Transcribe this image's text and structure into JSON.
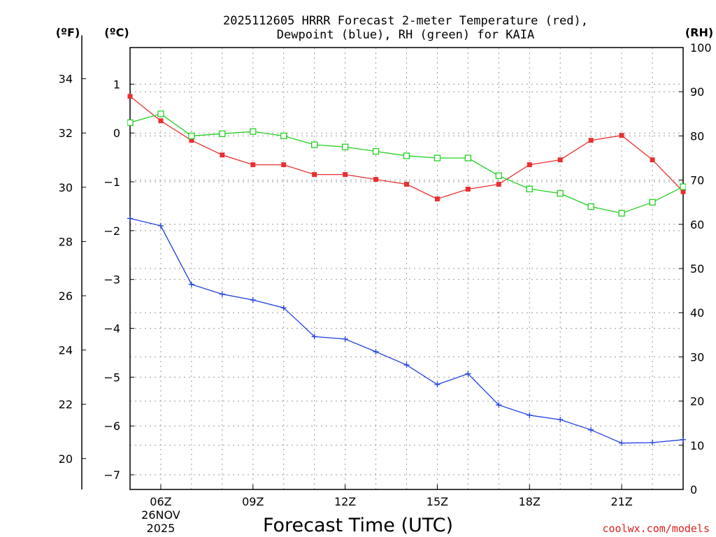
{
  "chart_data": {
    "type": "line",
    "title": "2025112605 HRRR Forecast 2-meter Temperature (red),",
    "subtitle": "Dewpoint (blue), RH (green) for KAIA",
    "xlabel": "Forecast Time (UTC)",
    "units": {
      "fahrenheit": "(ºF)",
      "celsius": "(ºC)",
      "rh": "(RH)"
    },
    "credit": "coolwx.com/models",
    "x_hours": [
      5,
      6,
      7,
      8,
      9,
      10,
      11,
      12,
      13,
      14,
      15,
      16,
      17,
      18,
      19,
      20,
      21,
      22,
      23
    ],
    "xlim": [
      5,
      23
    ],
    "x_ticks": [
      {
        "hour": 6,
        "label": "06Z",
        "date_line1": "26NOV",
        "date_line2": "2025"
      },
      {
        "hour": 9,
        "label": "09Z"
      },
      {
        "hour": 12,
        "label": "12Z"
      },
      {
        "hour": 15,
        "label": "15Z"
      },
      {
        "hour": 18,
        "label": "18Z"
      },
      {
        "hour": 21,
        "label": "21Z"
      }
    ],
    "celsius_axis": {
      "lim": [
        -7.3,
        1.75
      ],
      "ticks": [
        1,
        0,
        -1,
        -2,
        -3,
        -4,
        -5,
        -6,
        -7
      ],
      "tick_labels": [
        "1",
        "0",
        "−1",
        "−2",
        "−3",
        "−4",
        "−5",
        "−6",
        "−7"
      ]
    },
    "fahrenheit_axis": {
      "ticks": [
        34,
        32,
        30,
        28,
        26,
        24,
        22,
        20
      ]
    },
    "rh_axis": {
      "lim": [
        0,
        100
      ],
      "ticks": [
        0,
        10,
        20,
        30,
        40,
        50,
        60,
        70,
        80,
        90,
        100
      ]
    },
    "series": [
      {
        "name": "Temperature",
        "unit": "C",
        "axis": "celsius",
        "color": "#e83030",
        "marker": "filled-square",
        "values": [
          0.75,
          0.25,
          -0.15,
          -0.45,
          -0.65,
          -0.65,
          -0.85,
          -0.85,
          -0.95,
          -1.05,
          -1.35,
          -1.15,
          -1.05,
          -0.65,
          -0.55,
          -0.15,
          -0.05,
          -0.55,
          -1.2
        ]
      },
      {
        "name": "Dewpoint",
        "unit": "C",
        "axis": "celsius",
        "color": "#2040e0",
        "marker": "plus",
        "values": [
          -1.75,
          -1.9,
          -3.1,
          -3.3,
          -3.42,
          -3.58,
          -4.17,
          -4.22,
          -4.48,
          -4.75,
          -5.15,
          -4.93,
          -5.57,
          -5.78,
          -5.87,
          -6.08,
          -6.35,
          -6.34,
          -6.28
        ]
      },
      {
        "name": "RH",
        "unit": "%",
        "axis": "rh",
        "color": "#20d020",
        "marker": "open-square",
        "values": [
          83,
          85,
          80,
          80.5,
          81,
          80,
          78,
          77.5,
          76.5,
          75.5,
          75,
          75,
          71,
          68,
          67,
          64,
          62.5,
          65,
          68.5
        ]
      }
    ]
  }
}
